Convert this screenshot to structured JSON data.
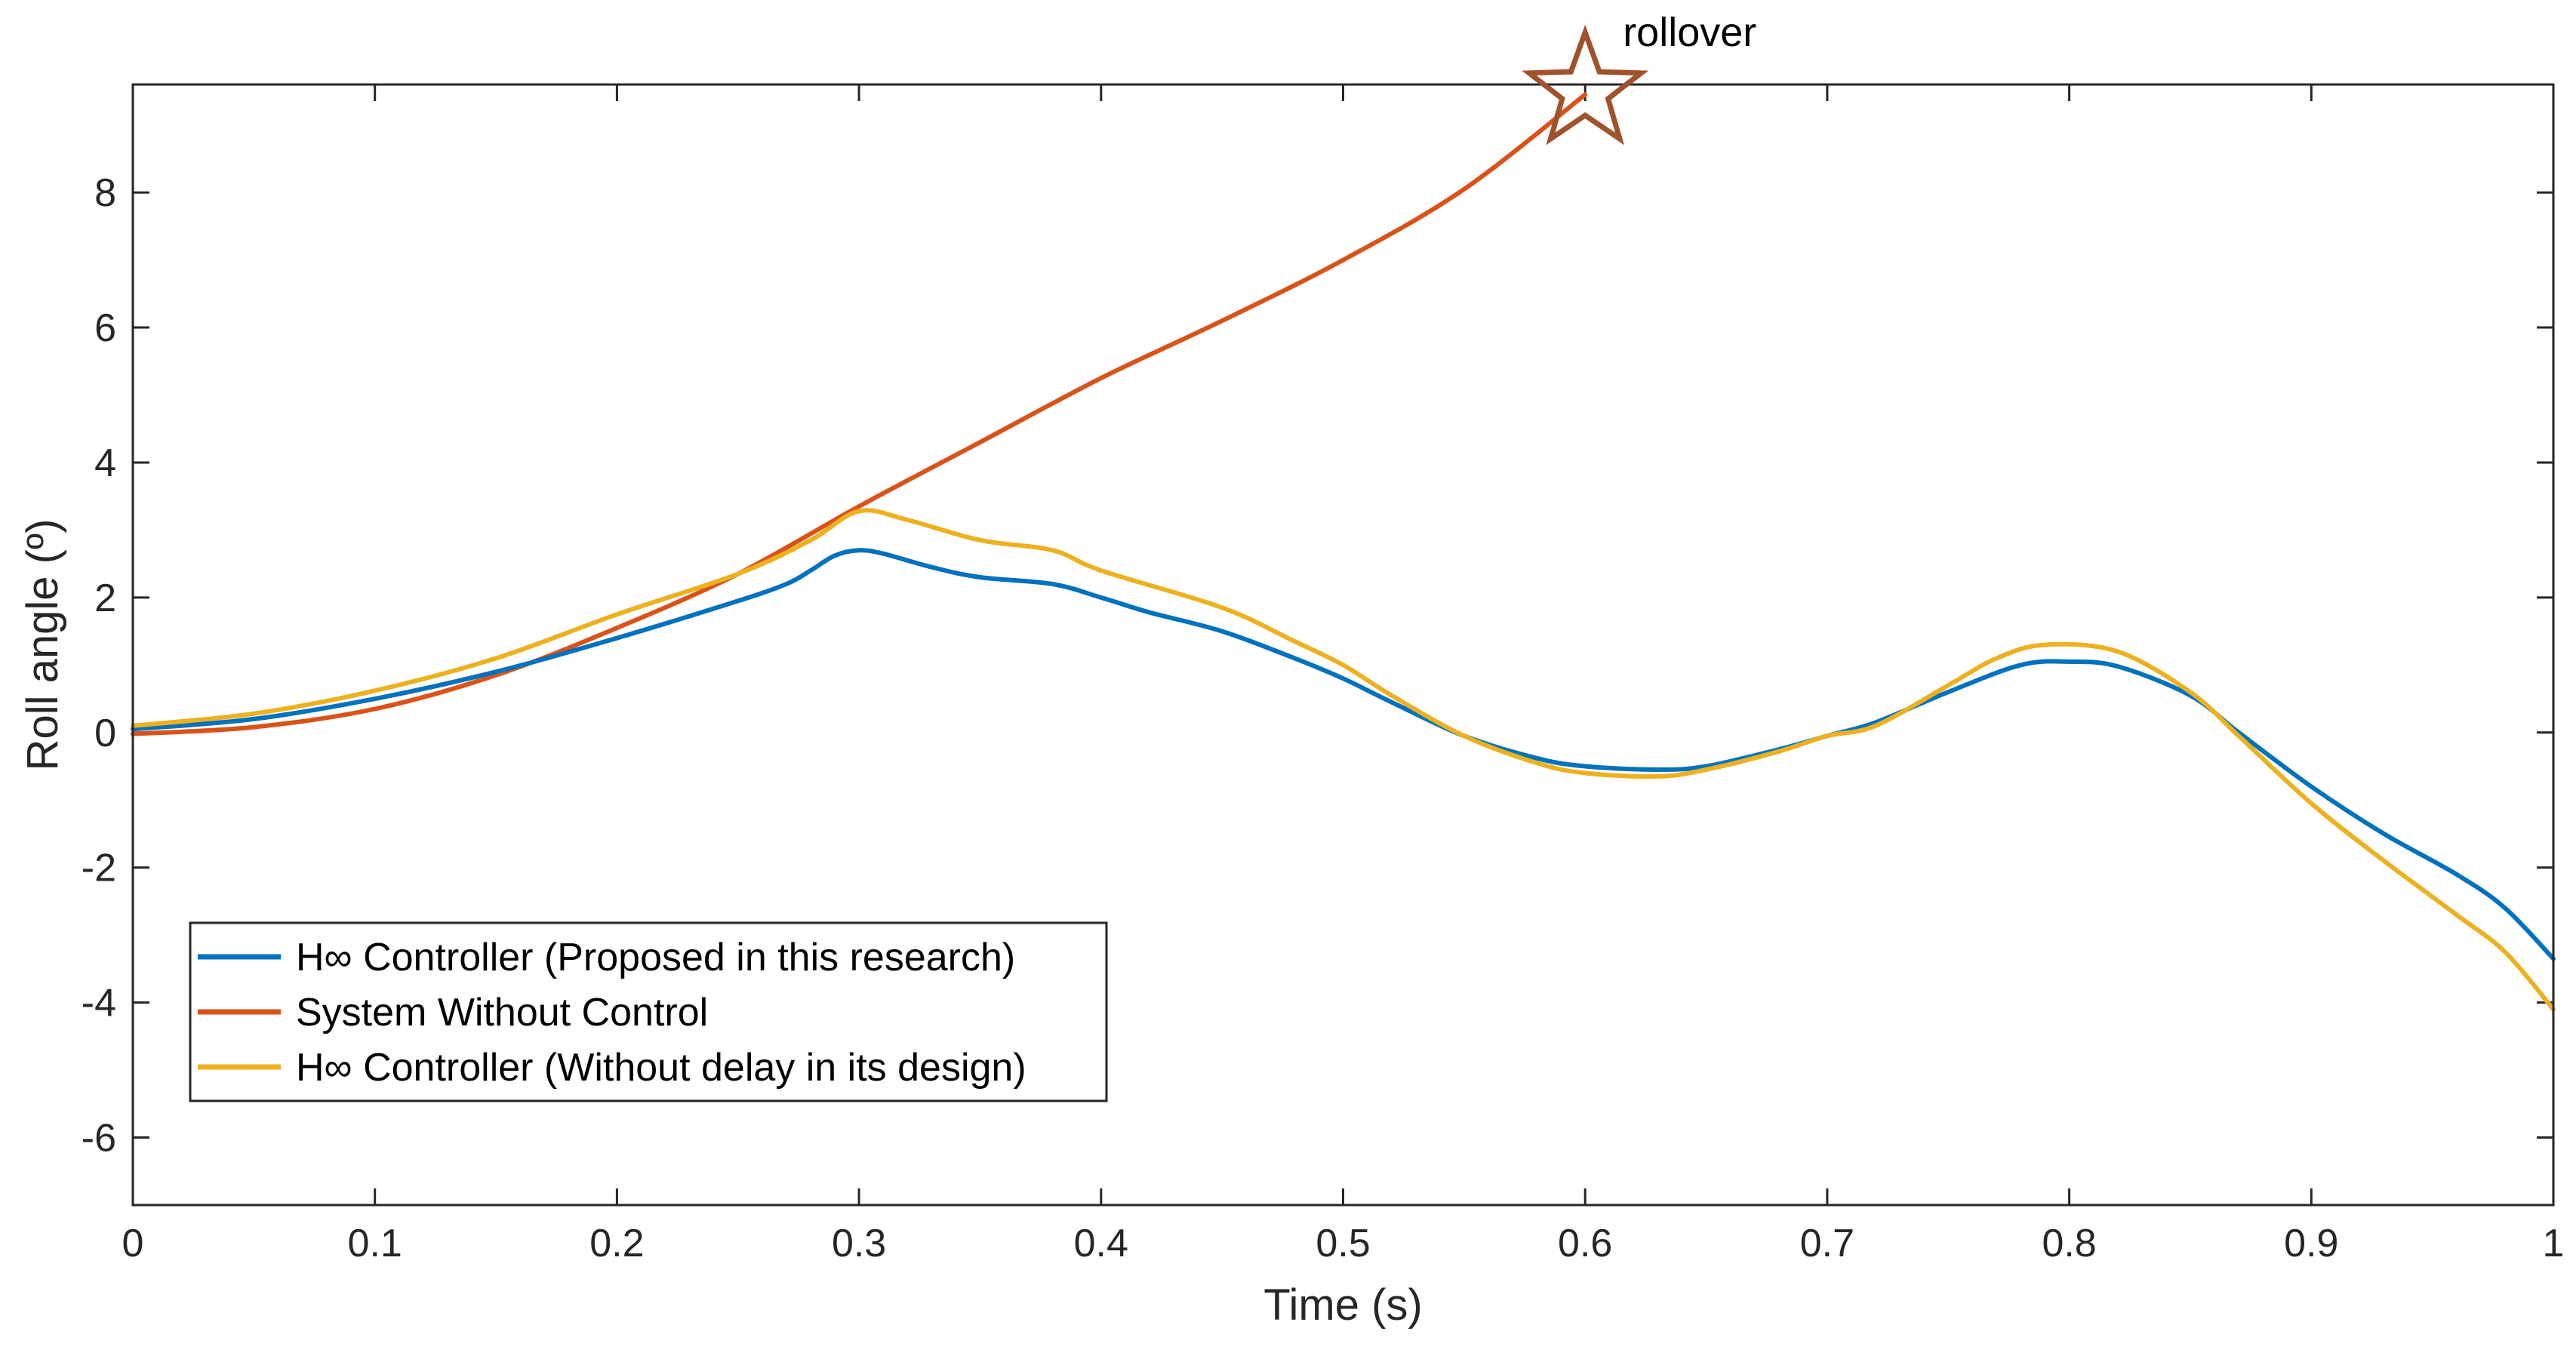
{
  "chart_data": {
    "type": "line",
    "title": "",
    "xlabel": "Time (s)",
    "ylabel": "Roll angle (º)",
    "xlim": [
      0,
      1
    ],
    "ylim": [
      -7,
      9.6
    ],
    "xticks": [
      0,
      0.1,
      0.2,
      0.3,
      0.4,
      0.5,
      0.6,
      0.7,
      0.8,
      0.9,
      1
    ],
    "xtick_labels": [
      "0",
      "0.1",
      "0.2",
      "0.3",
      "0.4",
      "0.5",
      "0.6",
      "0.7",
      "0.8",
      "0.9",
      "1"
    ],
    "yticks": [
      -6,
      -4,
      -2,
      0,
      2,
      4,
      6,
      8
    ],
    "ytick_labels": [
      "-6",
      "-4",
      "-2",
      "0",
      "2",
      "4",
      "6",
      "8"
    ],
    "grid": false,
    "legend_position": "bottom-left",
    "series": [
      {
        "name": "H∞ Controller (Proposed in this research)",
        "color": "#0072BD",
        "points": [
          [
            0,
            0.05
          ],
          [
            0.05,
            0.2
          ],
          [
            0.1,
            0.5
          ],
          [
            0.15,
            0.9
          ],
          [
            0.2,
            1.4
          ],
          [
            0.25,
            1.95
          ],
          [
            0.27,
            2.2
          ],
          [
            0.28,
            2.4
          ],
          [
            0.29,
            2.62
          ],
          [
            0.3,
            2.7
          ],
          [
            0.31,
            2.65
          ],
          [
            0.33,
            2.45
          ],
          [
            0.35,
            2.3
          ],
          [
            0.38,
            2.2
          ],
          [
            0.4,
            2.0
          ],
          [
            0.42,
            1.78
          ],
          [
            0.45,
            1.5
          ],
          [
            0.48,
            1.1
          ],
          [
            0.5,
            0.8
          ],
          [
            0.52,
            0.45
          ],
          [
            0.55,
            -0.05
          ],
          [
            0.58,
            -0.38
          ],
          [
            0.6,
            -0.5
          ],
          [
            0.63,
            -0.55
          ],
          [
            0.65,
            -0.5
          ],
          [
            0.68,
            -0.25
          ],
          [
            0.7,
            -0.05
          ],
          [
            0.72,
            0.15
          ],
          [
            0.75,
            0.6
          ],
          [
            0.78,
            1.0
          ],
          [
            0.8,
            1.05
          ],
          [
            0.82,
            0.98
          ],
          [
            0.85,
            0.55
          ],
          [
            0.87,
            0.0
          ],
          [
            0.9,
            -0.8
          ],
          [
            0.93,
            -1.5
          ],
          [
            0.96,
            -2.1
          ],
          [
            0.98,
            -2.6
          ],
          [
            1.0,
            -3.35
          ]
        ]
      },
      {
        "name": "System Without Control",
        "color": "#D95319",
        "points": [
          [
            0,
            -0.02
          ],
          [
            0.05,
            0.08
          ],
          [
            0.1,
            0.35
          ],
          [
            0.15,
            0.85
          ],
          [
            0.2,
            1.55
          ],
          [
            0.25,
            2.35
          ],
          [
            0.3,
            3.35
          ],
          [
            0.35,
            4.3
          ],
          [
            0.4,
            5.25
          ],
          [
            0.45,
            6.1
          ],
          [
            0.5,
            7.0
          ],
          [
            0.55,
            8.05
          ],
          [
            0.6,
            9.45
          ]
        ]
      },
      {
        "name": "H∞ Controller (Without delay in its design)",
        "color": "#EDB120",
        "points": [
          [
            0,
            0.1
          ],
          [
            0.05,
            0.28
          ],
          [
            0.1,
            0.62
          ],
          [
            0.15,
            1.1
          ],
          [
            0.2,
            1.75
          ],
          [
            0.25,
            2.35
          ],
          [
            0.28,
            2.85
          ],
          [
            0.3,
            3.28
          ],
          [
            0.32,
            3.15
          ],
          [
            0.35,
            2.85
          ],
          [
            0.38,
            2.7
          ],
          [
            0.4,
            2.4
          ],
          [
            0.45,
            1.85
          ],
          [
            0.48,
            1.35
          ],
          [
            0.5,
            1.0
          ],
          [
            0.52,
            0.55
          ],
          [
            0.55,
            -0.05
          ],
          [
            0.58,
            -0.45
          ],
          [
            0.6,
            -0.6
          ],
          [
            0.63,
            -0.65
          ],
          [
            0.65,
            -0.55
          ],
          [
            0.68,
            -0.28
          ],
          [
            0.7,
            -0.05
          ],
          [
            0.72,
            0.1
          ],
          [
            0.75,
            0.7
          ],
          [
            0.77,
            1.1
          ],
          [
            0.79,
            1.3
          ],
          [
            0.82,
            1.2
          ],
          [
            0.85,
            0.6
          ],
          [
            0.87,
            -0.05
          ],
          [
            0.9,
            -1.05
          ],
          [
            0.93,
            -1.9
          ],
          [
            0.96,
            -2.7
          ],
          [
            0.98,
            -3.25
          ],
          [
            1.0,
            -4.1
          ]
        ]
      }
    ],
    "annotations": [
      {
        "text": "rollover",
        "marker": "star",
        "x": 0.6,
        "y": 9.5,
        "color": "#A0522D"
      }
    ]
  }
}
